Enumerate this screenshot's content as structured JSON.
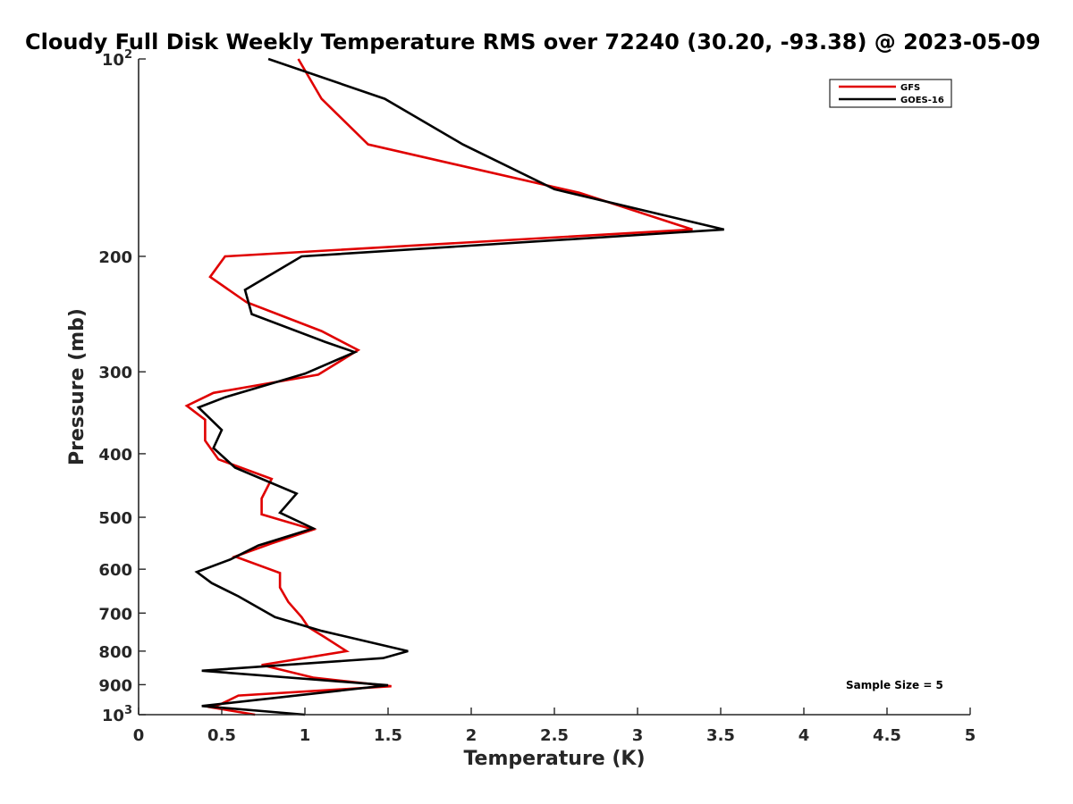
{
  "chart_data": {
    "type": "line",
    "title": "Cloudy Full Disk Weekly Temperature RMS over 72240 (30.20, -93.38) @ 2023-05-09",
    "xlabel": "Temperature (K)",
    "ylabel": "Pressure (mb)",
    "xlim": [
      0,
      5
    ],
    "ylim": [
      1000,
      100
    ],
    "y_scale": "log",
    "y_axis_reversed": true,
    "x_ticks": [
      "0",
      "0.5",
      "1",
      "1.5",
      "2",
      "2.5",
      "3",
      "3.5",
      "4",
      "4.5",
      "5"
    ],
    "y_ticks": [
      {
        "value": 100,
        "base": "10",
        "exp": "2"
      },
      {
        "value": 200,
        "label": "200"
      },
      {
        "value": 300,
        "label": "300"
      },
      {
        "value": 400,
        "label": "400"
      },
      {
        "value": 500,
        "label": "500"
      },
      {
        "value": 600,
        "label": "600"
      },
      {
        "value": 700,
        "label": "700"
      },
      {
        "value": 800,
        "label": "800"
      },
      {
        "value": 900,
        "label": "900"
      },
      {
        "value": 1000,
        "base": "10",
        "exp": "3"
      }
    ],
    "legend_position": "top-right",
    "annotation": "Sample Size = 5",
    "series": [
      {
        "name": "GFS",
        "color": "#e00000",
        "points": [
          [
            0.96,
            100
          ],
          [
            1.1,
            115
          ],
          [
            1.38,
            135
          ],
          [
            2.65,
            160
          ],
          [
            3.33,
            182
          ],
          [
            0.52,
            200
          ],
          [
            0.43,
            215
          ],
          [
            0.65,
            235
          ],
          [
            1.1,
            260
          ],
          [
            1.32,
            278
          ],
          [
            1.08,
            303
          ],
          [
            0.45,
            323
          ],
          [
            0.29,
            338
          ],
          [
            0.4,
            355
          ],
          [
            0.4,
            382
          ],
          [
            0.48,
            408
          ],
          [
            0.8,
            437
          ],
          [
            0.74,
            468
          ],
          [
            0.74,
            495
          ],
          [
            1.05,
            522
          ],
          [
            0.8,
            548
          ],
          [
            0.58,
            574
          ],
          [
            0.85,
            608
          ],
          [
            0.85,
            640
          ],
          [
            0.9,
            673
          ],
          [
            0.98,
            710
          ],
          [
            1.02,
            735
          ],
          [
            1.12,
            762
          ],
          [
            1.25,
            800
          ],
          [
            0.74,
            840
          ],
          [
            1.05,
            878
          ],
          [
            1.52,
            905
          ],
          [
            0.6,
            935
          ],
          [
            0.5,
            962
          ],
          [
            0.44,
            975
          ],
          [
            0.7,
            1000
          ]
        ]
      },
      {
        "name": "GOES-16",
        "color": "#000000",
        "points": [
          [
            0.78,
            100
          ],
          [
            1.48,
            115
          ],
          [
            1.95,
            135
          ],
          [
            2.5,
            158
          ],
          [
            3.52,
            182
          ],
          [
            0.98,
            200
          ],
          [
            0.64,
            225
          ],
          [
            0.68,
            245
          ],
          [
            1.12,
            270
          ],
          [
            1.3,
            280
          ],
          [
            1.0,
            302
          ],
          [
            0.52,
            328
          ],
          [
            0.36,
            340
          ],
          [
            0.5,
            368
          ],
          [
            0.45,
            392
          ],
          [
            0.58,
            420
          ],
          [
            0.95,
            460
          ],
          [
            0.85,
            492
          ],
          [
            1.05,
            520
          ],
          [
            0.72,
            552
          ],
          [
            0.55,
            580
          ],
          [
            0.35,
            606
          ],
          [
            0.44,
            630
          ],
          [
            0.6,
            660
          ],
          [
            0.82,
            710
          ],
          [
            1.1,
            745
          ],
          [
            1.62,
            800
          ],
          [
            1.47,
            820
          ],
          [
            0.38,
            857
          ],
          [
            1.5,
            902
          ],
          [
            0.38,
            970
          ],
          [
            1.0,
            1000
          ]
        ]
      }
    ]
  }
}
